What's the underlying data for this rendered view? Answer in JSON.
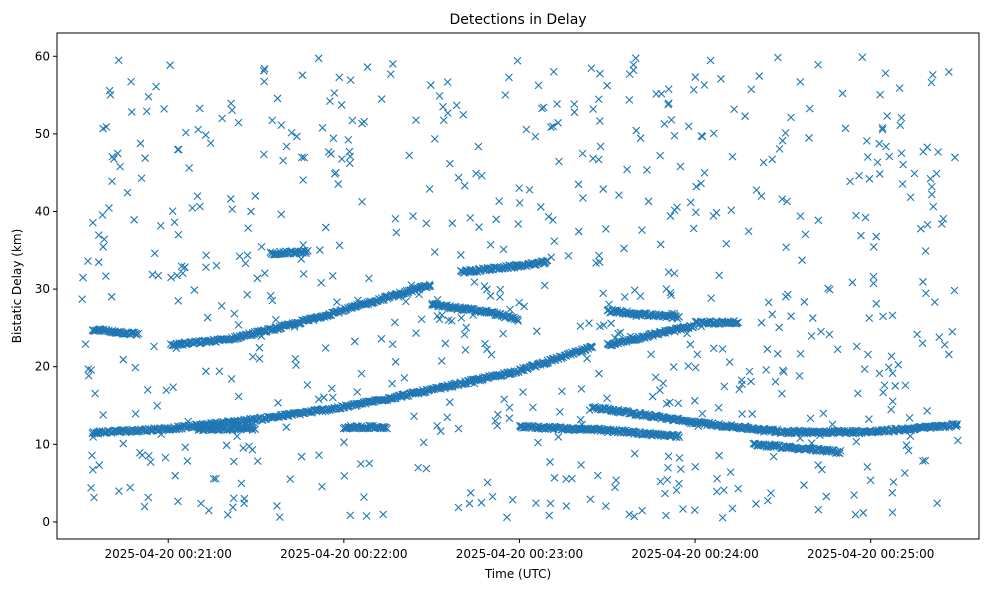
{
  "chart_data": {
    "type": "scatter",
    "title": "Detections in Delay",
    "xlabel": "Time (UTC)",
    "ylabel": "Bistatic Delay (km)",
    "xlim": [
      "2025-04-20 00:20:22",
      "2025-04-20 00:25:37"
    ],
    "ylim": [
      -2.2,
      63
    ],
    "xticks": [
      "2025-04-20 00:21:00",
      "2025-04-20 00:22:00",
      "2025-04-20 00:23:00",
      "2025-04-20 00:24:00",
      "2025-04-20 00:25:00"
    ],
    "yticks": [
      0,
      10,
      20,
      30,
      40,
      50,
      60
    ],
    "grid": false,
    "marker": "x",
    "color": "#1f77b4",
    "series": [
      {
        "x_start": "2025-04-20 00:20:30",
        "x_end": "2025-04-20 00:25:30",
        "tracks": [
          {
            "points": [
              [
                "00:20:34",
                11.5
              ],
              [
                "00:21:00",
                12.0
              ],
              [
                "00:21:30",
                13.2
              ],
              [
                "00:22:00",
                14.8
              ],
              [
                "00:22:30",
                17.0
              ],
              [
                "00:23:00",
                19.5
              ],
              [
                "00:23:25",
                22.5
              ]
            ]
          },
          {
            "points": [
              [
                "00:20:34",
                24.8
              ],
              [
                "00:20:50",
                24.2
              ]
            ]
          },
          {
            "points": [
              [
                "00:21:01",
                22.8
              ],
              [
                "00:21:20",
                23.5
              ],
              [
                "00:21:40",
                25.2
              ],
              [
                "00:22:00",
                27.3
              ],
              [
                "00:22:20",
                29.5
              ],
              [
                "00:22:30",
                30.5
              ]
            ]
          },
          {
            "points": [
              [
                "00:21:35",
                34.6
              ],
              [
                "00:21:48",
                34.8
              ]
            ]
          },
          {
            "points": [
              [
                "00:22:30",
                28.0
              ],
              [
                "00:22:50",
                27.0
              ],
              [
                "00:23:00",
                26.0
              ]
            ]
          },
          {
            "points": [
              [
                "00:22:40",
                32.2
              ],
              [
                "00:23:00",
                33.0
              ],
              [
                "00:23:10",
                33.5
              ]
            ]
          },
          {
            "points": [
              [
                "00:23:00",
                12.3
              ],
              [
                "00:23:30",
                11.8
              ],
              [
                "00:23:55",
                11.0
              ]
            ]
          },
          {
            "points": [
              [
                "00:23:25",
                14.8
              ],
              [
                "00:24:00",
                12.8
              ],
              [
                "00:24:30",
                11.6
              ],
              [
                "00:25:00",
                11.6
              ],
              [
                "00:25:30",
                12.5
              ]
            ]
          },
          {
            "points": [
              [
                "00:23:30",
                22.8
              ],
              [
                "00:23:50",
                24.5
              ],
              [
                "00:24:00",
                25.2
              ]
            ]
          },
          {
            "points": [
              [
                "00:23:30",
                27.2
              ],
              [
                "00:23:55",
                26.3
              ]
            ]
          },
          {
            "points": [
              [
                "00:24:00",
                25.7
              ],
              [
                "00:24:15",
                25.7
              ]
            ]
          },
          {
            "points": [
              [
                "00:24:20",
                10.0
              ],
              [
                "00:24:50",
                9.0
              ]
            ]
          },
          {
            "points": [
              [
                "00:21:10",
                12.0
              ],
              [
                "00:21:30",
                12.0
              ]
            ]
          },
          {
            "points": [
              [
                "00:22:00",
                12.2
              ],
              [
                "00:22:15",
                12.2
              ]
            ]
          }
        ],
        "noise_count": 700,
        "noise_range": [
          0.5,
          60
        ]
      }
    ]
  }
}
